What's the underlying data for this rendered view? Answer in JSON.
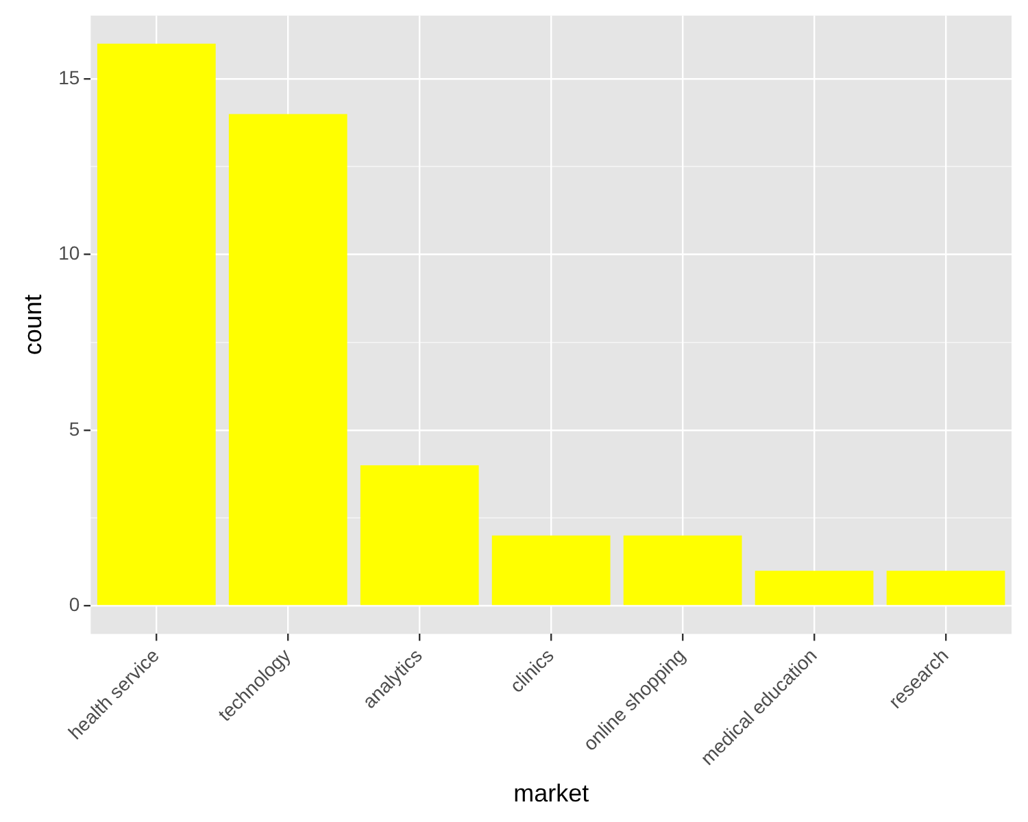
{
  "chart_data": {
    "type": "bar",
    "xlabel": "market",
    "ylabel": "count",
    "categories": [
      "health service",
      "technology",
      "analytics",
      "clinics",
      "online shopping",
      "medical education",
      "research"
    ],
    "values": [
      16,
      14,
      4,
      2,
      2,
      1,
      1
    ],
    "color": "#ffff00",
    "ylim": [
      -0.8,
      16.8
    ],
    "yticks": [
      0,
      5,
      10,
      15
    ],
    "grid": true,
    "legend": false
  }
}
